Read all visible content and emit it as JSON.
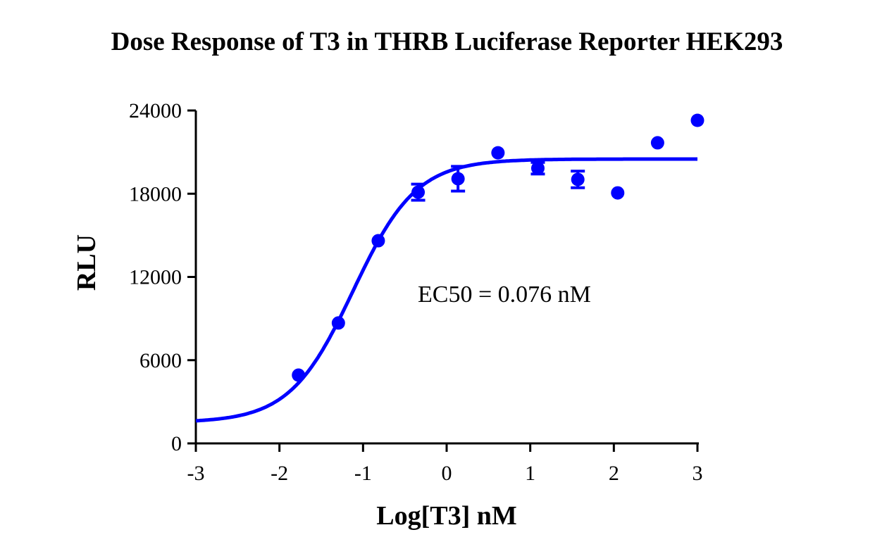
{
  "chart_data": {
    "type": "scatter",
    "title": "Dose Response of T3 in THRB Luciferase Reporter HEK293",
    "xlabel": "Log[T3] nM",
    "ylabel": "RLU",
    "xlim": [
      -3,
      3
    ],
    "ylim": [
      0,
      24000
    ],
    "xticks": [
      "-3",
      "-2",
      "-1",
      "0",
      "1",
      "2",
      "3"
    ],
    "yticks": [
      "0",
      "6000",
      "12000",
      "18000",
      "24000"
    ],
    "grid": false,
    "color": "#0000ff",
    "annotation": "EC50 = 0.076 nM",
    "points": [
      {
        "x": -1.772,
        "y": 4920,
        "err": 0
      },
      {
        "x": -1.295,
        "y": 8680,
        "err": 0
      },
      {
        "x": -0.818,
        "y": 14610,
        "err": 0
      },
      {
        "x": -0.341,
        "y": 18110,
        "err": 580
      },
      {
        "x": 0.136,
        "y": 19080,
        "err": 890
      },
      {
        "x": 0.614,
        "y": 20950,
        "err": 0
      },
      {
        "x": 1.091,
        "y": 19840,
        "err": 420
      },
      {
        "x": 1.569,
        "y": 19030,
        "err": 600
      },
      {
        "x": 2.046,
        "y": 18060,
        "err": 0
      },
      {
        "x": 2.523,
        "y": 21670,
        "err": 0
      },
      {
        "x": 3.0,
        "y": 23290,
        "err": 0
      }
    ],
    "fit": {
      "model": "4PL",
      "bottom": 1500,
      "top": 20500,
      "log_ec50": -1.119,
      "hill": 1.15
    }
  }
}
